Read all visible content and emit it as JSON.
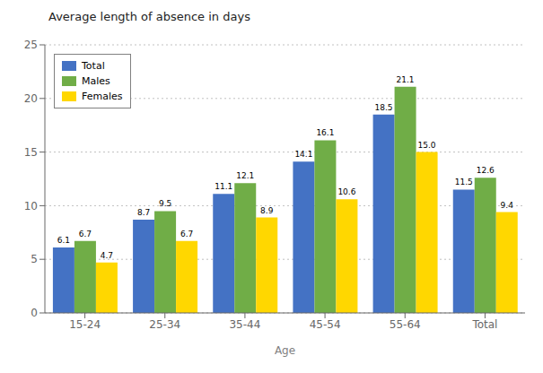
{
  "chart_data": {
    "type": "bar",
    "ylabel": "Average length of absence in days",
    "xlabel": "Age",
    "categories": [
      "15-24",
      "25-34",
      "35-44",
      "45-54",
      "55-64",
      "Total"
    ],
    "series": [
      {
        "name": "Total",
        "color": "#4472C4",
        "values": [
          6.1,
          8.7,
          11.1,
          14.1,
          18.5,
          11.5
        ]
      },
      {
        "name": "Males",
        "color": "#70AD47",
        "values": [
          6.7,
          9.5,
          12.1,
          16.1,
          21.1,
          12.6
        ]
      },
      {
        "name": "Females",
        "color": "#FFD700",
        "values": [
          4.7,
          6.7,
          8.9,
          10.6,
          15.0,
          9.4
        ],
        "value_labels": [
          "4.7",
          "6.7",
          "8.9",
          "10.6",
          "15.0",
          "9.4"
        ]
      }
    ],
    "ylim": [
      0,
      25
    ],
    "yticks": [
      0,
      5,
      10,
      15,
      20,
      25
    ],
    "grid": true,
    "legend": "upper left",
    "data_labels": true
  }
}
